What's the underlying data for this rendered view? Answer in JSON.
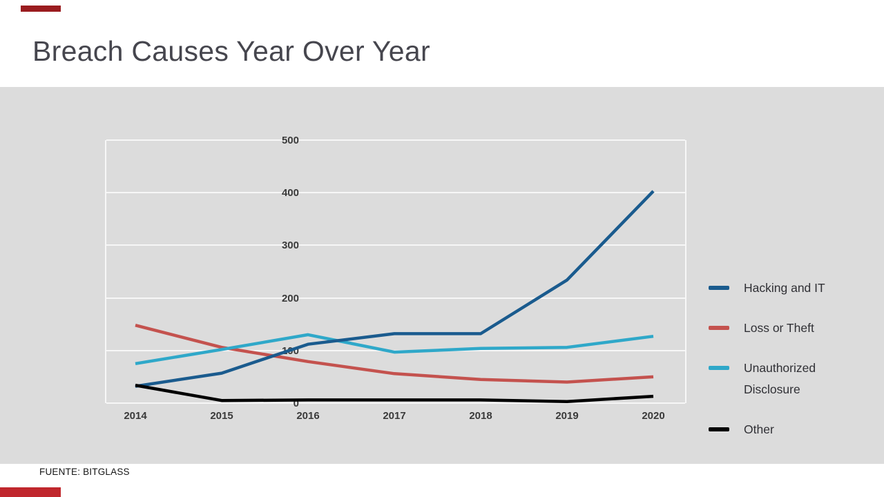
{
  "page": {
    "title": "Breach Causes Year Over Year",
    "source_note": "FUENTE: BITGLASS",
    "accent_top_color": "#9a1c1f",
    "accent_bottom_color": "#c0272d",
    "panel_background": "#dcdcdc",
    "gridline_color": "#f7f7f7"
  },
  "chart_data": {
    "type": "line",
    "title": "Breach Causes Year Over Year",
    "categories": [
      "2014",
      "2015",
      "2016",
      "2017",
      "2018",
      "2019",
      "2020"
    ],
    "series": [
      {
        "name": "Hacking and IT",
        "color": "#1a5b8e",
        "values": [
          32,
          57,
          112,
          132,
          132,
          234,
          403
        ]
      },
      {
        "name": "Loss or Theft",
        "color": "#c4524e",
        "values": [
          148,
          106,
          79,
          56,
          45,
          40,
          50
        ]
      },
      {
        "name": "Unauthorized Disclosure",
        "color": "#2fa8c9",
        "values": [
          75,
          102,
          130,
          97,
          104,
          106,
          127
        ]
      },
      {
        "name": "Other",
        "color": "#000000",
        "values": [
          34,
          5,
          6,
          6,
          6,
          3,
          13
        ]
      }
    ],
    "xlabel": "",
    "ylabel": "",
    "ylim": [
      0,
      500
    ],
    "yticks": [
      0,
      100,
      200,
      300,
      400,
      500
    ],
    "grid": true,
    "legend_position": "right",
    "draw_order": [
      1,
      2,
      0,
      3
    ]
  }
}
